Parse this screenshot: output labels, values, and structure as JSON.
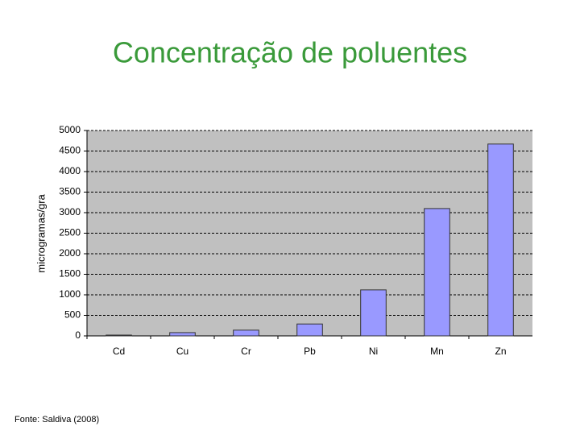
{
  "chart_data": {
    "type": "bar",
    "title": "Concentração de poluentes",
    "ylabel": "microgramas/gra",
    "categories": [
      "Cd",
      "Cu",
      "Cr",
      "Pb",
      "Ni",
      "Mn",
      "Zn"
    ],
    "values": [
      20,
      80,
      140,
      290,
      1120,
      3100,
      4670
    ],
    "color": "#9999ff",
    "ylim": [
      0,
      5000
    ],
    "yticks": [
      0,
      500,
      1000,
      1500,
      2000,
      2500,
      3000,
      3500,
      4000,
      4500,
      5000
    ],
    "grid": true,
    "source": "Fonte: Saldiva (2008)"
  }
}
